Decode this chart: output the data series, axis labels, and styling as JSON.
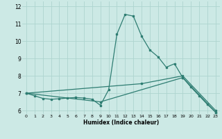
{
  "title": "",
  "xlabel": "Humidex (Indice chaleur)",
  "ylabel": "",
  "bg_color": "#cce9e5",
  "grid_color": "#add4cf",
  "line_color": "#2e7d72",
  "xlim": [
    -0.5,
    23.5
  ],
  "ylim": [
    5.8,
    12.3
  ],
  "xticks": [
    0,
    1,
    2,
    3,
    4,
    5,
    6,
    7,
    8,
    9,
    10,
    11,
    12,
    13,
    14,
    15,
    16,
    17,
    18,
    19,
    20,
    21,
    22,
    23
  ],
  "yticks": [
    6,
    7,
    8,
    9,
    10,
    11,
    12
  ],
  "series": [
    [
      0,
      7.0
    ],
    [
      1,
      6.85
    ],
    [
      2,
      6.7
    ],
    [
      3,
      6.65
    ],
    [
      4,
      6.68
    ],
    [
      5,
      6.72
    ],
    [
      6,
      6.75
    ],
    [
      7,
      6.72
    ],
    [
      8,
      6.65
    ],
    [
      9,
      6.3
    ],
    [
      10,
      7.2
    ],
    [
      11,
      10.4
    ],
    [
      12,
      11.55
    ],
    [
      13,
      11.45
    ],
    [
      14,
      10.3
    ],
    [
      15,
      9.5
    ],
    [
      16,
      9.1
    ],
    [
      17,
      8.5
    ],
    [
      18,
      8.7
    ],
    [
      19,
      7.9
    ],
    [
      20,
      7.35
    ],
    [
      21,
      6.85
    ],
    [
      22,
      6.35
    ],
    [
      23,
      5.9
    ]
  ],
  "series2": [
    [
      0,
      7.0
    ],
    [
      9,
      6.5
    ],
    [
      19,
      7.9
    ],
    [
      23,
      5.9
    ]
  ],
  "series3": [
    [
      0,
      7.0
    ],
    [
      14,
      7.55
    ],
    [
      19,
      8.0
    ],
    [
      23,
      6.0
    ]
  ]
}
